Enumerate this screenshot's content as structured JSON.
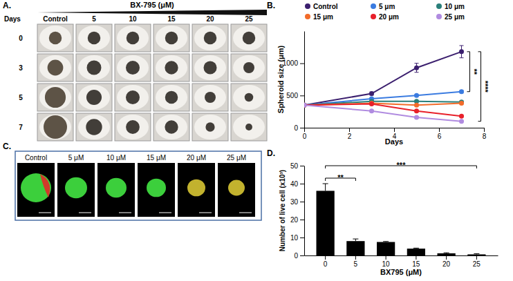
{
  "panel_a": {
    "label": "A.",
    "header": "BX-795 (μM)",
    "columns": [
      "Control",
      "5",
      "10",
      "15",
      "20",
      "25"
    ],
    "row_title": "Days",
    "rows": [
      "0",
      "3",
      "5",
      "7"
    ]
  },
  "panel_c": {
    "label": "C.",
    "columns": [
      "Control",
      "5 μM",
      "10 μM",
      "15 μM",
      "20 μM",
      "25 μM"
    ]
  },
  "chart_data": [
    {
      "type": "line",
      "title": "B.",
      "x_label": "Days",
      "y_label": "Spheroid size (μm)",
      "x": [
        0,
        3,
        5,
        7
      ],
      "xlim": [
        0,
        8
      ],
      "xticks": [
        0,
        2,
        4,
        6,
        8
      ],
      "ylim": [
        0,
        1500
      ],
      "yticks": [
        0,
        500,
        1000
      ],
      "marker": "circle",
      "legend": "top",
      "series": [
        {
          "name": "Control",
          "color": "#3b1f6e",
          "values": [
            350,
            530,
            930,
            1180
          ],
          "errors": [
            15,
            25,
            70,
            95
          ]
        },
        {
          "name": "5 μm",
          "color": "#3a7be0",
          "values": [
            350,
            450,
            500,
            560
          ],
          "errors": [
            15,
            15,
            15,
            20
          ]
        },
        {
          "name": "10 μm",
          "color": "#2a7f7a",
          "values": [
            350,
            410,
            410,
            400
          ],
          "errors": [
            15,
            15,
            15,
            15
          ]
        },
        {
          "name": "15 μm",
          "color": "#f26b2a",
          "values": [
            350,
            380,
            350,
            380
          ],
          "errors": [
            15,
            15,
            15,
            15
          ]
        },
        {
          "name": "20 μm",
          "color": "#e8202a",
          "values": [
            350,
            370,
            260,
            180
          ],
          "errors": [
            15,
            15,
            15,
            15
          ]
        },
        {
          "name": "25 μm",
          "color": "#b08be0",
          "values": [
            350,
            260,
            160,
            100
          ],
          "errors": [
            15,
            15,
            15,
            10
          ]
        }
      ],
      "annotations": [
        {
          "text": "**",
          "from": "Control",
          "to": "5 μm"
        },
        {
          "text": "****",
          "from": "Control",
          "to": "25 μm"
        }
      ]
    },
    {
      "type": "bar",
      "title": "D.",
      "x_label": "BX795 (μM)",
      "y_label": "Number of live cell (x10³)",
      "categories": [
        "0",
        "5",
        "10",
        "15",
        "20",
        "25"
      ],
      "values": [
        36,
        8,
        7.5,
        3.8,
        1.2,
        0.6
      ],
      "errors": [
        4,
        1.2,
        0.3,
        0.3,
        0.3,
        0.4
      ],
      "color": "#000000",
      "ylim": [
        0,
        50
      ],
      "yticks": [
        0,
        10,
        20,
        30,
        40,
        50
      ],
      "annotations": [
        {
          "text": "**",
          "from": "0",
          "to": "5"
        },
        {
          "text": "***",
          "from": "0",
          "to": "25"
        }
      ]
    }
  ]
}
